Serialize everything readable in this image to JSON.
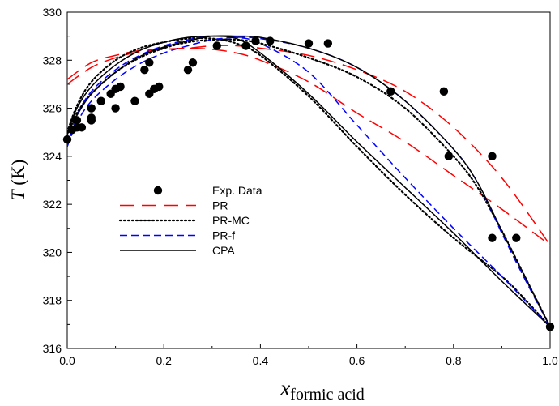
{
  "chart_data": {
    "type": "scatter",
    "xlim": [
      0.0,
      1.0
    ],
    "ylim": [
      316,
      330
    ],
    "x_ticks": [
      "0.0",
      "0.2",
      "0.4",
      "0.6",
      "0.8",
      "1.0"
    ],
    "y_ticks": [
      "316",
      "318",
      "320",
      "322",
      "324",
      "326",
      "328",
      "330"
    ],
    "xlabel": {
      "main": "x",
      "sub": "formic acid"
    },
    "ylabel": {
      "main": "T",
      "unit": " (K)"
    },
    "grid": false,
    "legend_position": "center-left",
    "legend": [
      "Exp. Data",
      "PR",
      "PR-MC",
      "PR-f",
      "CPA"
    ],
    "points": {
      "name": "Exp. Data",
      "color": "#000000",
      "x": [
        0.0,
        0.01,
        0.02,
        0.02,
        0.03,
        0.05,
        0.05,
        0.05,
        0.07,
        0.09,
        0.1,
        0.1,
        0.11,
        0.14,
        0.16,
        0.17,
        0.17,
        0.18,
        0.19,
        0.25,
        0.26,
        0.31,
        0.37,
        0.39,
        0.42,
        0.5,
        0.54,
        0.67,
        0.78,
        0.79,
        0.88,
        0.88,
        0.93,
        1.0
      ],
      "y": [
        324.7,
        325.1,
        325.5,
        325.2,
        325.2,
        325.5,
        325.6,
        326.0,
        326.3,
        326.6,
        326.0,
        326.8,
        326.9,
        326.3,
        327.6,
        326.6,
        327.9,
        326.8,
        326.9,
        327.6,
        327.9,
        328.6,
        328.6,
        328.8,
        328.8,
        328.7,
        328.7,
        326.7,
        326.7,
        324.0,
        324.0,
        320.6,
        320.6,
        316.9
      ]
    },
    "series": [
      {
        "name": "PR",
        "color": "#ff0000",
        "style": "long-dash",
        "branches": [
          {
            "x": [
              0.0,
              0.05,
              0.1,
              0.15,
              0.2,
              0.25,
              0.3,
              0.35,
              0.4,
              0.5,
              0.6,
              0.7,
              0.8,
              0.9,
              1.0
            ],
            "y": [
              327.0,
              327.7,
              328.1,
              328.35,
              328.45,
              328.5,
              328.45,
              328.3,
              328.0,
              327.1,
              325.8,
              324.6,
              323.2,
              321.8,
              320.3
            ]
          },
          {
            "x": [
              0.0,
              0.05,
              0.1,
              0.15,
              0.2,
              0.25,
              0.3,
              0.35,
              0.4,
              0.5,
              0.6,
              0.7,
              0.8,
              0.9,
              1.0
            ],
            "y": [
              327.2,
              327.9,
              328.2,
              328.4,
              328.45,
              328.5,
              328.6,
              328.6,
              328.5,
              328.2,
              327.6,
              326.7,
              325.2,
              323.1,
              320.3
            ]
          }
        ]
      },
      {
        "name": "PR-MC",
        "color": "#000000",
        "style": "dotted",
        "branches": [
          {
            "x": [
              0.0,
              0.02,
              0.05,
              0.1,
              0.15,
              0.2,
              0.25,
              0.3,
              0.35,
              0.4,
              0.5,
              0.6,
              0.7,
              0.8,
              0.9,
              0.95,
              1.0
            ],
            "y": [
              325.0,
              326.1,
              327.1,
              328.0,
              328.5,
              328.75,
              328.9,
              328.9,
              328.7,
              328.2,
              326.5,
              324.4,
              322.4,
              320.6,
              319.0,
              318.0,
              316.9
            ]
          },
          {
            "x": [
              0.0,
              0.02,
              0.05,
              0.1,
              0.15,
              0.2,
              0.25,
              0.3,
              0.35,
              0.4,
              0.5,
              0.6,
              0.7,
              0.8,
              0.85,
              0.9,
              0.95,
              1.0
            ],
            "y": [
              325.0,
              325.8,
              326.6,
              327.5,
              328.1,
              328.5,
              328.75,
              328.85,
              328.85,
              328.7,
              328.1,
              327.3,
              326.0,
              324.0,
              322.7,
              320.9,
              318.9,
              316.9
            ]
          }
        ]
      },
      {
        "name": "PR-f",
        "color": "#0000ff",
        "style": "dash",
        "branches": [
          {
            "x": [
              0.0,
              0.02,
              0.05,
              0.1,
              0.15,
              0.2,
              0.25,
              0.3,
              0.35,
              0.4,
              0.5,
              0.6,
              0.7,
              0.8,
              0.9,
              1.0
            ],
            "y": [
              324.4,
              325.7,
              326.7,
              327.6,
              328.2,
              328.6,
              328.85,
              329.0,
              328.95,
              328.7,
              327.5,
              325.3,
              323.1,
              321.0,
              319.0,
              316.9
            ]
          },
          {
            "x": [
              0.0,
              0.02,
              0.05,
              0.1,
              0.15,
              0.2,
              0.25,
              0.3,
              0.35,
              0.4,
              0.5,
              0.6,
              0.7,
              0.8,
              0.85,
              0.9,
              0.95,
              1.0
            ],
            "y": [
              324.4,
              325.4,
              326.3,
              327.2,
              327.85,
              328.3,
              328.6,
              328.85,
              328.95,
              328.9,
              328.5,
              327.7,
              326.3,
              324.3,
              322.9,
              320.8,
              318.8,
              316.9
            ]
          }
        ]
      },
      {
        "name": "CPA",
        "color": "#000000",
        "style": "solid",
        "branches": [
          {
            "x": [
              0.0,
              0.02,
              0.05,
              0.1,
              0.15,
              0.2,
              0.25,
              0.3,
              0.35,
              0.4,
              0.5,
              0.6,
              0.7,
              0.8,
              0.9,
              1.0
            ],
            "y": [
              324.9,
              326.0,
              326.9,
              327.8,
              328.4,
              328.75,
              328.95,
              329.0,
              328.9,
              328.3,
              326.6,
              324.6,
              322.7,
              320.8,
              318.8,
              316.9
            ]
          },
          {
            "x": [
              0.0,
              0.02,
              0.05,
              0.1,
              0.15,
              0.2,
              0.25,
              0.3,
              0.35,
              0.4,
              0.5,
              0.6,
              0.7,
              0.8,
              0.85,
              0.9,
              0.95,
              1.0
            ],
            "y": [
              324.9,
              325.7,
              326.6,
              327.5,
              328.15,
              328.55,
              328.8,
              329.0,
              329.0,
              328.95,
              328.5,
              327.7,
              326.3,
              324.3,
              322.9,
              320.9,
              318.9,
              316.9
            ]
          }
        ]
      }
    ]
  }
}
